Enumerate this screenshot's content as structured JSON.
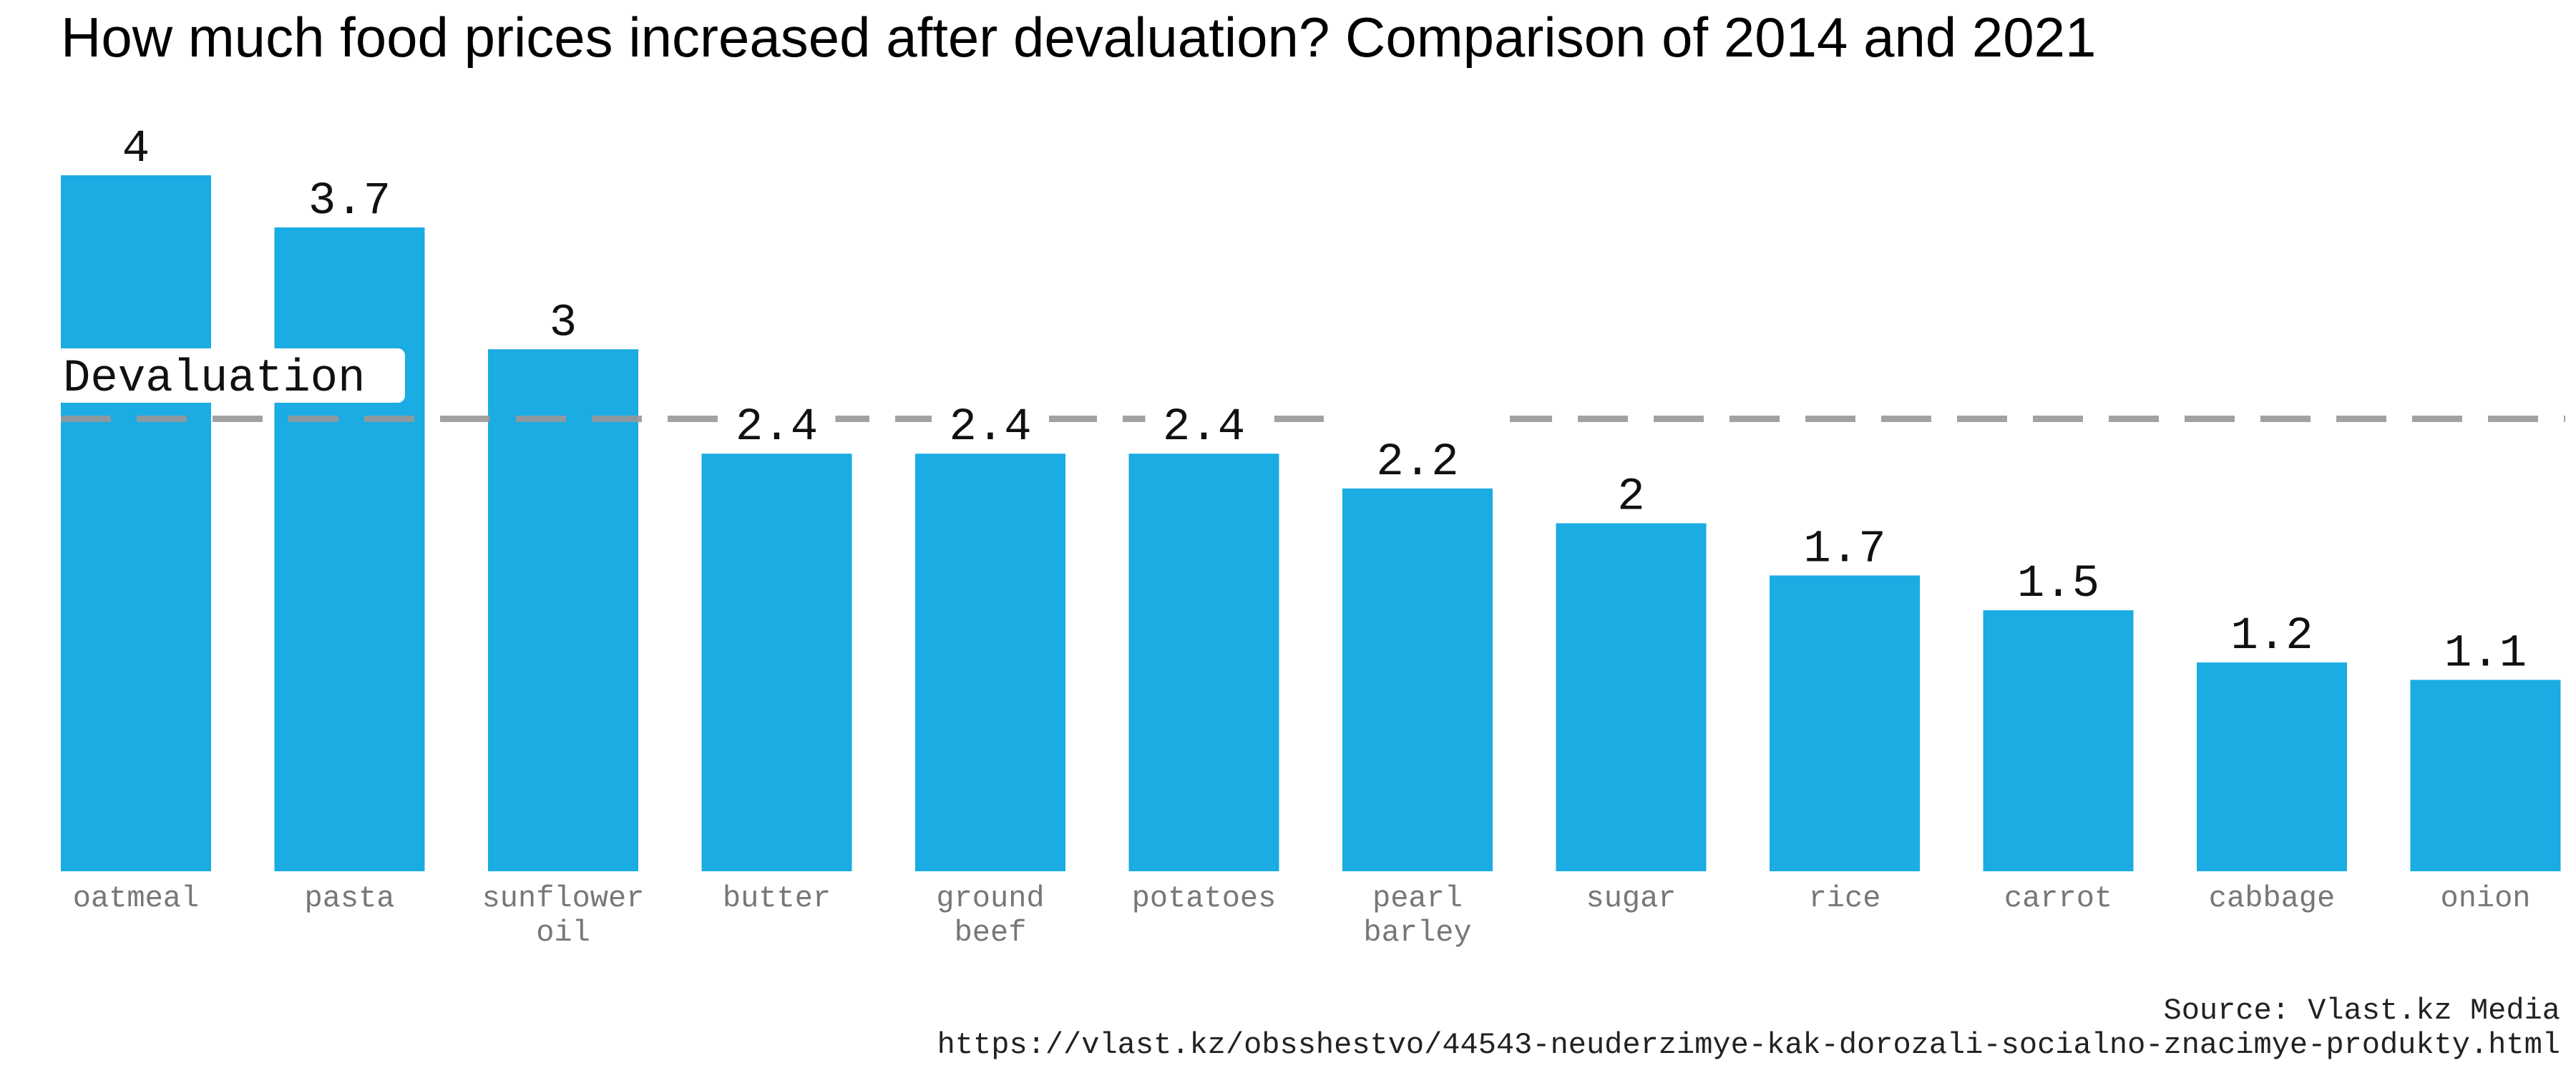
{
  "chart_data": {
    "type": "bar",
    "title": "How much food prices increased after devaluation? Comparison of 2014 and 2021",
    "xlabel": "",
    "ylabel": "",
    "categories": [
      "oatmeal",
      "pasta",
      "sunflower oil",
      "butter",
      "ground beef",
      "potatoes",
      "pearl barley",
      "sugar",
      "rice",
      "carrot",
      "cabbage",
      "onion"
    ],
    "category_lines": [
      [
        "oatmeal"
      ],
      [
        "pasta"
      ],
      [
        "sunflower",
        "oil"
      ],
      [
        "butter"
      ],
      [
        "ground",
        "beef"
      ],
      [
        "potatoes"
      ],
      [
        "pearl",
        "barley"
      ],
      [
        "sugar"
      ],
      [
        "rice"
      ],
      [
        "carrot"
      ],
      [
        "cabbage"
      ],
      [
        "onion"
      ]
    ],
    "values": [
      4,
      3.7,
      3,
      2.4,
      2.4,
      2.4,
      2.2,
      2,
      1.7,
      1.5,
      1.2,
      1.1
    ],
    "value_labels": [
      "4",
      "3.7",
      "3",
      "2.4",
      "2.4",
      "2.4",
      "2.2",
      "2",
      "1.7",
      "1.5",
      "1.2",
      "1.1"
    ],
    "ylim": [
      0,
      4
    ],
    "grid": false,
    "legend": "none",
    "bar_color": "#1aace2",
    "reference_line": {
      "label": "Devaluation",
      "value": 2.6,
      "color": "#999999",
      "style": "dashed"
    }
  },
  "source": {
    "line1": "Source: Vlast.kz Media",
    "line2": "https://vlast.kz/obsshestvo/44543-neuderzimye-kak-dorozali-socialno-znacimye-produkty.html"
  }
}
